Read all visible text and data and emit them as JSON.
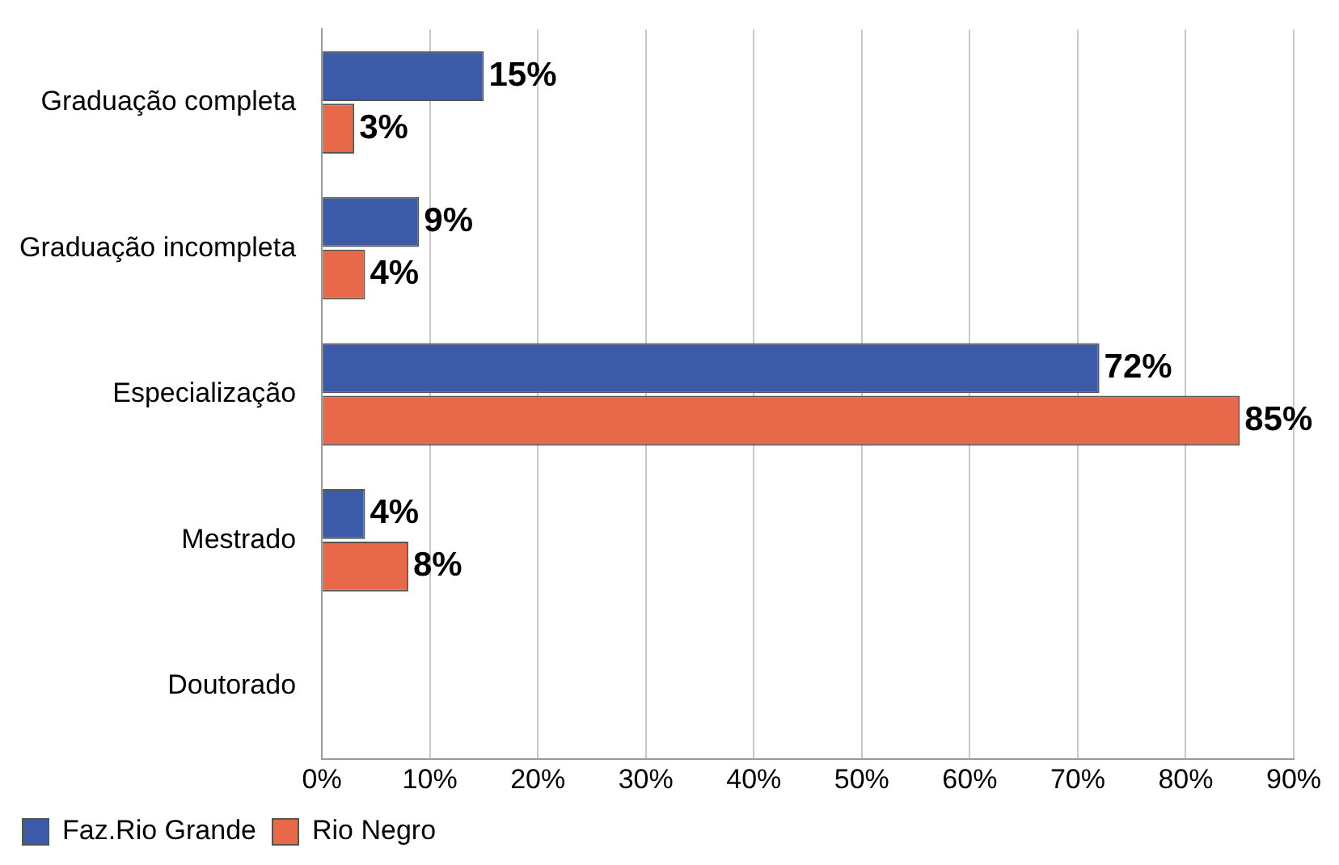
{
  "chart_data": {
    "type": "bar",
    "orientation": "horizontal",
    "categories": [
      "Graduação completa",
      "Graduação incompleta",
      "Especialização",
      "Mestrado",
      "Doutorado"
    ],
    "series": [
      {
        "name": "Faz.Rio Grande",
        "color": "#3b5ba9",
        "values": [
          15,
          9,
          72,
          4,
          null
        ],
        "value_labels": [
          "15%",
          "9%",
          "72%",
          "4%",
          null
        ]
      },
      {
        "name": "Rio Negro",
        "color": "#e8694a",
        "values": [
          3,
          4,
          85,
          8,
          null
        ],
        "value_labels": [
          "3%",
          "4%",
          "85%",
          "8%",
          null
        ]
      }
    ],
    "xlim": [
      0,
      90
    ],
    "xticks": [
      {
        "value": 0,
        "label": "0%"
      },
      {
        "value": 10,
        "label": "10%"
      },
      {
        "value": 20,
        "label": "20%"
      },
      {
        "value": 30,
        "label": "30%"
      },
      {
        "value": 40,
        "label": "40%"
      },
      {
        "value": 50,
        "label": "50%"
      },
      {
        "value": 60,
        "label": "60%"
      },
      {
        "value": 70,
        "label": "70%"
      },
      {
        "value": 80,
        "label": "80%"
      },
      {
        "value": 90,
        "label": "90%"
      }
    ],
    "grid": "x",
    "legend": "bottom left"
  }
}
